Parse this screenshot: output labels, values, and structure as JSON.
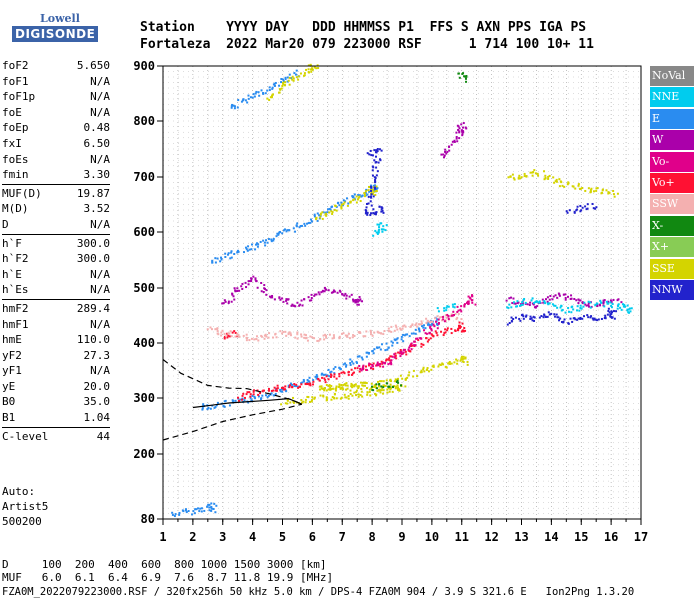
{
  "logo": {
    "line1": "Lowell",
    "line2": "DIGISONDE"
  },
  "header": {
    "line1": "Station    YYYY DAY   DDD HHMMSS P1  FFS S AXN PPS IGA PS",
    "line2": "Fortaleza  2022 Mar20 079 223000 RSF      1 714 100 10+ 11"
  },
  "params": [
    {
      "name": "foF2",
      "value": "5.650"
    },
    {
      "name": "foF1",
      "value": "N/A"
    },
    {
      "name": "foF1p",
      "value": "N/A"
    },
    {
      "name": "foE",
      "value": "N/A"
    },
    {
      "name": "foEp",
      "value": "0.48"
    },
    {
      "name": "fxI",
      "value": "6.50"
    },
    {
      "name": "foEs",
      "value": "N/A"
    },
    {
      "name": "fmin",
      "value": "3.30"
    },
    {
      "sep": true
    },
    {
      "name": "MUF(D)",
      "value": "19.87"
    },
    {
      "name": "M(D)",
      "value": "3.52"
    },
    {
      "name": "D",
      "value": "N/A"
    },
    {
      "sep": true
    },
    {
      "name": "h`F",
      "value": "300.0"
    },
    {
      "name": "h`F2",
      "value": "300.0"
    },
    {
      "name": "h`E",
      "value": "N/A"
    },
    {
      "name": "h`Es",
      "value": "N/A"
    },
    {
      "sep": true
    },
    {
      "name": "hmF2",
      "value": "289.4"
    },
    {
      "name": "hmF1",
      "value": "N/A"
    },
    {
      "name": "hmE",
      "value": "110.0"
    },
    {
      "name": "yF2",
      "value": "27.3"
    },
    {
      "name": "yF1",
      "value": "N/A"
    },
    {
      "name": "yE",
      "value": "20.0"
    },
    {
      "name": "B0",
      "value": "35.0"
    },
    {
      "name": "B1",
      "value": "1.04"
    },
    {
      "sep": true
    },
    {
      "name": "C-level",
      "value": "44"
    }
  ],
  "auto": {
    "line1": "Auto:",
    "line2": "Artist5",
    "line3": "500200"
  },
  "legend": [
    {
      "label": "NoVal",
      "color": "#888888"
    },
    {
      "label": "NNE",
      "color": "#00ccee"
    },
    {
      "label": "E",
      "color": "#2a8cf0"
    },
    {
      "label": "W",
      "color": "#aa00aa"
    },
    {
      "label": "Vo-",
      "color": "#e0008a"
    },
    {
      "label": "Vo+",
      "color": "#ff1133"
    },
    {
      "label": "SSW",
      "color": "#f4b0b0"
    },
    {
      "label": "X-",
      "color": "#118811"
    },
    {
      "label": "X+",
      "color": "#88cc55"
    },
    {
      "label": "SSE",
      "color": "#d4d400"
    },
    {
      "label": "NNW",
      "color": "#2222cc"
    }
  ],
  "chart_data": {
    "type": "scatter",
    "xlim": [
      1,
      17
    ],
    "ylim": [
      80,
      900
    ],
    "xticks": [
      "1",
      "2",
      "3",
      "4",
      "5",
      "6",
      "7",
      "8",
      "9",
      "10",
      "11",
      "12",
      "13",
      "14",
      "15",
      "16",
      "17"
    ],
    "yticks": [
      "80",
      "200",
      "300",
      "400",
      "500",
      "600",
      "700",
      "800",
      "900"
    ],
    "ytick_values": [
      80,
      200,
      300,
      400,
      500,
      600,
      700,
      800,
      900
    ],
    "profile_solid": [
      [
        2.0,
        283
      ],
      [
        2.6,
        287
      ],
      [
        3.2,
        291
      ],
      [
        4.0,
        294
      ],
      [
        4.6,
        296
      ],
      [
        5.2,
        299
      ],
      [
        5.65,
        289
      ]
    ],
    "profile_dashed_top": [
      [
        1.0,
        370
      ],
      [
        1.6,
        345
      ],
      [
        2.5,
        323
      ],
      [
        3.2,
        318
      ],
      [
        3.8,
        317
      ],
      [
        4.6,
        307
      ],
      [
        5.3,
        297
      ],
      [
        5.65,
        289
      ]
    ],
    "profile_dashed_bottom": [
      [
        1.0,
        225
      ],
      [
        2.0,
        240
      ],
      [
        3.0,
        258
      ],
      [
        4.0,
        270
      ],
      [
        5.0,
        280
      ],
      [
        5.65,
        289
      ]
    ],
    "traces": [
      {
        "color": "#2a8cf0",
        "points": [
          [
            1.3,
            90
          ],
          [
            1.8,
            95
          ],
          [
            2.3,
            100
          ],
          [
            2.6,
            103
          ],
          [
            2.2,
            285
          ],
          [
            3.0,
            290
          ],
          [
            4.0,
            300
          ],
          [
            5.0,
            318
          ],
          [
            6.0,
            335
          ],
          [
            7.0,
            360
          ],
          [
            8.0,
            385
          ],
          [
            9.0,
            410
          ],
          [
            10.0,
            440
          ],
          [
            2.6,
            548
          ],
          [
            3.5,
            565
          ],
          [
            4.5,
            587
          ],
          [
            5.5,
            612
          ],
          [
            6.5,
            640
          ],
          [
            7.5,
            668
          ],
          [
            8.0,
            680
          ],
          [
            3.2,
            825
          ],
          [
            4.5,
            860
          ],
          [
            5.5,
            890
          ]
        ]
      },
      {
        "color": "#d4d400",
        "points": [
          [
            5.0,
            295
          ],
          [
            6.0,
            300
          ],
          [
            7.0,
            305
          ],
          [
            8.0,
            310
          ],
          [
            9.0,
            320
          ],
          [
            6.2,
            320
          ],
          [
            7.5,
            325
          ],
          [
            8.6,
            330
          ],
          [
            10.2,
            360
          ],
          [
            11.0,
            370
          ],
          [
            4.5,
            840
          ],
          [
            5.2,
            875
          ],
          [
            6.0,
            895
          ],
          [
            6.0,
            625
          ],
          [
            7.0,
            650
          ],
          [
            8.0,
            676
          ],
          [
            12.5,
            700
          ],
          [
            13.5,
            710
          ],
          [
            14.3,
            690
          ],
          [
            15.3,
            678
          ],
          [
            16.2,
            670
          ]
        ]
      },
      {
        "color": "#ff1133",
        "points": [
          [
            3.5,
            300
          ],
          [
            4.0,
            310
          ],
          [
            4.5,
            318
          ],
          [
            5.0,
            320
          ],
          [
            5.5,
            322
          ],
          [
            8.0,
            360
          ],
          [
            9.0,
            385
          ],
          [
            10.2,
            420
          ],
          [
            11.0,
            430
          ],
          [
            3.0,
            415
          ],
          [
            3.5,
            420
          ]
        ]
      },
      {
        "color": "#f4b0b0",
        "points": [
          [
            2.5,
            430
          ],
          [
            3.0,
            420
          ],
          [
            4.0,
            410
          ],
          [
            5.0,
            420
          ],
          [
            6.0,
            410
          ],
          [
            7.0,
            415
          ],
          [
            8.0,
            420
          ],
          [
            9.0,
            430
          ],
          [
            10.0,
            445
          ],
          [
            11.0,
            450
          ]
        ]
      },
      {
        "color": "#aa00aa",
        "points": [
          [
            3.0,
            470
          ],
          [
            3.5,
            500
          ],
          [
            4.0,
            520
          ],
          [
            4.5,
            490
          ],
          [
            5.5,
            470
          ],
          [
            6.5,
            500
          ],
          [
            7.5,
            480
          ],
          [
            10.3,
            735
          ],
          [
            10.6,
            760
          ],
          [
            11.0,
            790
          ],
          [
            12.5,
            480
          ],
          [
            13.4,
            470
          ],
          [
            14.3,
            490
          ],
          [
            15.2,
            470
          ],
          [
            16.3,
            480
          ]
        ]
      },
      {
        "color": "#2222cc",
        "points": [
          [
            7.8,
            740
          ],
          [
            8.2,
            750
          ],
          [
            7.8,
            632
          ],
          [
            8.2,
            640
          ],
          [
            12.5,
            440
          ],
          [
            13.0,
            450
          ],
          [
            13.5,
            445
          ],
          [
            14.0,
            455
          ],
          [
            14.5,
            440
          ],
          [
            15.0,
            450
          ],
          [
            15.5,
            445
          ],
          [
            16.0,
            455
          ],
          [
            14.5,
            640
          ],
          [
            15.5,
            650
          ]
        ]
      },
      {
        "color": "#00ccee",
        "points": [
          [
            8.0,
            600
          ],
          [
            8.3,
            610
          ],
          [
            12.5,
            470
          ],
          [
            13.5,
            480
          ],
          [
            14.5,
            460
          ],
          [
            15.5,
            475
          ],
          [
            16.5,
            465
          ],
          [
            10.2,
            460
          ],
          [
            10.8,
            470
          ]
        ]
      },
      {
        "color": "#e0008a",
        "points": [
          [
            7.5,
            355
          ],
          [
            8.5,
            365
          ],
          [
            10.0,
            430
          ],
          [
            11.3,
            480
          ],
          [
            16.0,
            420
          ]
        ]
      },
      {
        "color": "#118811",
        "points": [
          [
            11.0,
            880
          ],
          [
            8.0,
            320
          ],
          [
            9.0,
            330
          ]
        ]
      }
    ]
  }
}
